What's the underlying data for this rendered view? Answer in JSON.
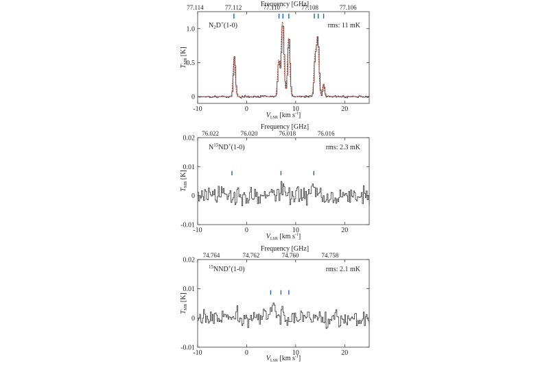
{
  "chart_data": [
    {
      "type": "line",
      "top_axis_label": "Frequency [GHz]",
      "xlabel": "V",
      "xlabel_sub": "LSR",
      "xlabel_unit": " [km s",
      "xlabel_exp": "-1",
      "xlabel_close": "]",
      "ylabel": "T",
      "ylabel_sub": "MB",
      "ylabel_unit": " [K]",
      "species_main": "N",
      "species_sub": "2",
      "species_rest": "D",
      "species_sup": "+",
      "species_tail": "(1-0)",
      "rms_label": "rms: 11 mK",
      "xlim": [
        -10,
        25
      ],
      "ylim": [
        -0.1,
        1.25
      ],
      "x_ticks": [
        -10,
        0,
        10,
        20
      ],
      "y_ticks": [
        0,
        0.5,
        1.0
      ],
      "y_tick_labels": [
        "0",
        "0.5",
        "1.0"
      ],
      "top_ticks": [
        "77.114",
        "77.112",
        "77.110",
        "77.108",
        "77.106"
      ],
      "top_tick_x": [
        -10.5,
        -2.7,
        5.1,
        12.9,
        20.7
      ],
      "marker_x": [
        -2.6,
        6.6,
        7.4,
        8.6,
        13.8,
        14.6,
        15.7
      ],
      "components": [
        {
          "x0": -2.55,
          "amp": 0.59,
          "w": 0.22
        },
        {
          "x0": 6.5,
          "amp": 0.52,
          "w": 0.22
        },
        {
          "x0": 7.3,
          "amp": 1.1,
          "w": 0.28
        },
        {
          "x0": 8.55,
          "amp": 0.86,
          "w": 0.24
        },
        {
          "x0": 13.9,
          "amp": 0.52,
          "w": 0.22
        },
        {
          "x0": 14.45,
          "amp": 0.86,
          "w": 0.26
        },
        {
          "x0": 15.65,
          "amp": 0.18,
          "w": 0.2
        }
      ],
      "noise": 0.011,
      "has_fit": true,
      "fit_color": "#c0392b",
      "marker_color": "#1f5fbf"
    },
    {
      "type": "line",
      "top_axis_label": "Frequency [GHz]",
      "xlabel": "V",
      "xlabel_sub": "LSR",
      "xlabel_unit": " [km s",
      "xlabel_exp": "-1",
      "xlabel_close": "]",
      "ylabel": "T",
      "ylabel_sub": "MB",
      "ylabel_unit": " [K]",
      "species_main": "N",
      "species_sup1": "15",
      "species_rest": "ND",
      "species_sup": "+",
      "species_tail": "(1-0)",
      "rms_label": "rms: 2.3 mK",
      "xlim": [
        -10,
        25
      ],
      "ylim": [
        -0.01,
        0.02
      ],
      "x_ticks": [
        -10,
        0,
        10,
        20
      ],
      "y_ticks": [
        -0.01,
        0,
        0.01,
        0.02
      ],
      "y_tick_labels": [
        "-0.01",
        "0",
        "0.01",
        "0.02"
      ],
      "top_ticks": [
        "76.022",
        "76.020",
        "76.018",
        "76.016"
      ],
      "top_tick_x": [
        -7.4,
        0.5,
        8.3,
        16.2
      ],
      "marker_x": [
        -3.0,
        7.0,
        13.7
      ],
      "components": [
        {
          "x0": 7.2,
          "amp": 0.003,
          "w": 0.5
        },
        {
          "x0": 13.6,
          "amp": 0.003,
          "w": 0.5
        }
      ],
      "noise": 0.0023,
      "has_fit": false,
      "marker_color": "#1f5fbf"
    },
    {
      "type": "line",
      "top_axis_label": "Frequency [GHz]",
      "xlabel": "V",
      "xlabel_sub": "LSR",
      "xlabel_unit": " [km s",
      "xlabel_exp": "-1",
      "xlabel_close": "]",
      "ylabel": "T",
      "ylabel_sub": "MB",
      "ylabel_unit": " [K]",
      "species_main": "",
      "species_sup1": "15",
      "species_rest": "NND",
      "species_sup": "+",
      "species_tail": "(1-0)",
      "rms_label": "rms: 2.1 mK",
      "xlim": [
        -10,
        25
      ],
      "ylim": [
        -0.01,
        0.02
      ],
      "x_ticks": [
        -10,
        0,
        10,
        20
      ],
      "y_ticks": [
        -0.01,
        0,
        0.01,
        0.02
      ],
      "y_tick_labels": [
        "-0.01",
        "0",
        "0.01",
        "0.02"
      ],
      "top_ticks": [
        "74.764",
        "74.762",
        "74.760",
        "74.758"
      ],
      "top_tick_x": [
        -7.2,
        0.9,
        8.9,
        17.0
      ],
      "marker_x": [
        4.9,
        7.0,
        8.6
      ],
      "components": [
        {
          "x0": 5.1,
          "amp": 0.004,
          "w": 0.4
        },
        {
          "x0": 7.2,
          "amp": 0.003,
          "w": 0.4
        }
      ],
      "noise": 0.0021,
      "has_fit": false,
      "marker_color": "#1f5fbf"
    }
  ]
}
